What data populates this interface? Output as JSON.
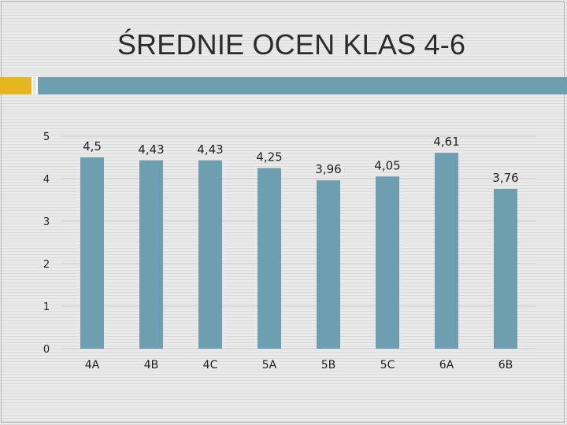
{
  "slide": {
    "title": "ŚREDNIE OCEN KLAS 4-6"
  },
  "colors": {
    "bar": "#6e9fb0",
    "accent_gold": "#e6b520",
    "accent_teal": "#6e9fb0",
    "gridline": "#cfcfcf"
  },
  "chart_data": {
    "type": "bar",
    "categories": [
      "4A",
      "4B",
      "4C",
      "5A",
      "5B",
      "5C",
      "6A",
      "6B"
    ],
    "values": [
      4.5,
      4.43,
      4.43,
      4.25,
      3.96,
      4.05,
      4.61,
      3.76
    ],
    "data_labels": [
      "4,5",
      "4,43",
      "4,43",
      "4,25",
      "3,96",
      "4,05",
      "4,61",
      "3,76"
    ],
    "yticks": [
      0,
      1,
      2,
      3,
      4,
      5
    ],
    "ylim": [
      0,
      5
    ],
    "grid": true,
    "legend": "none",
    "xlabel": "",
    "ylabel": ""
  }
}
